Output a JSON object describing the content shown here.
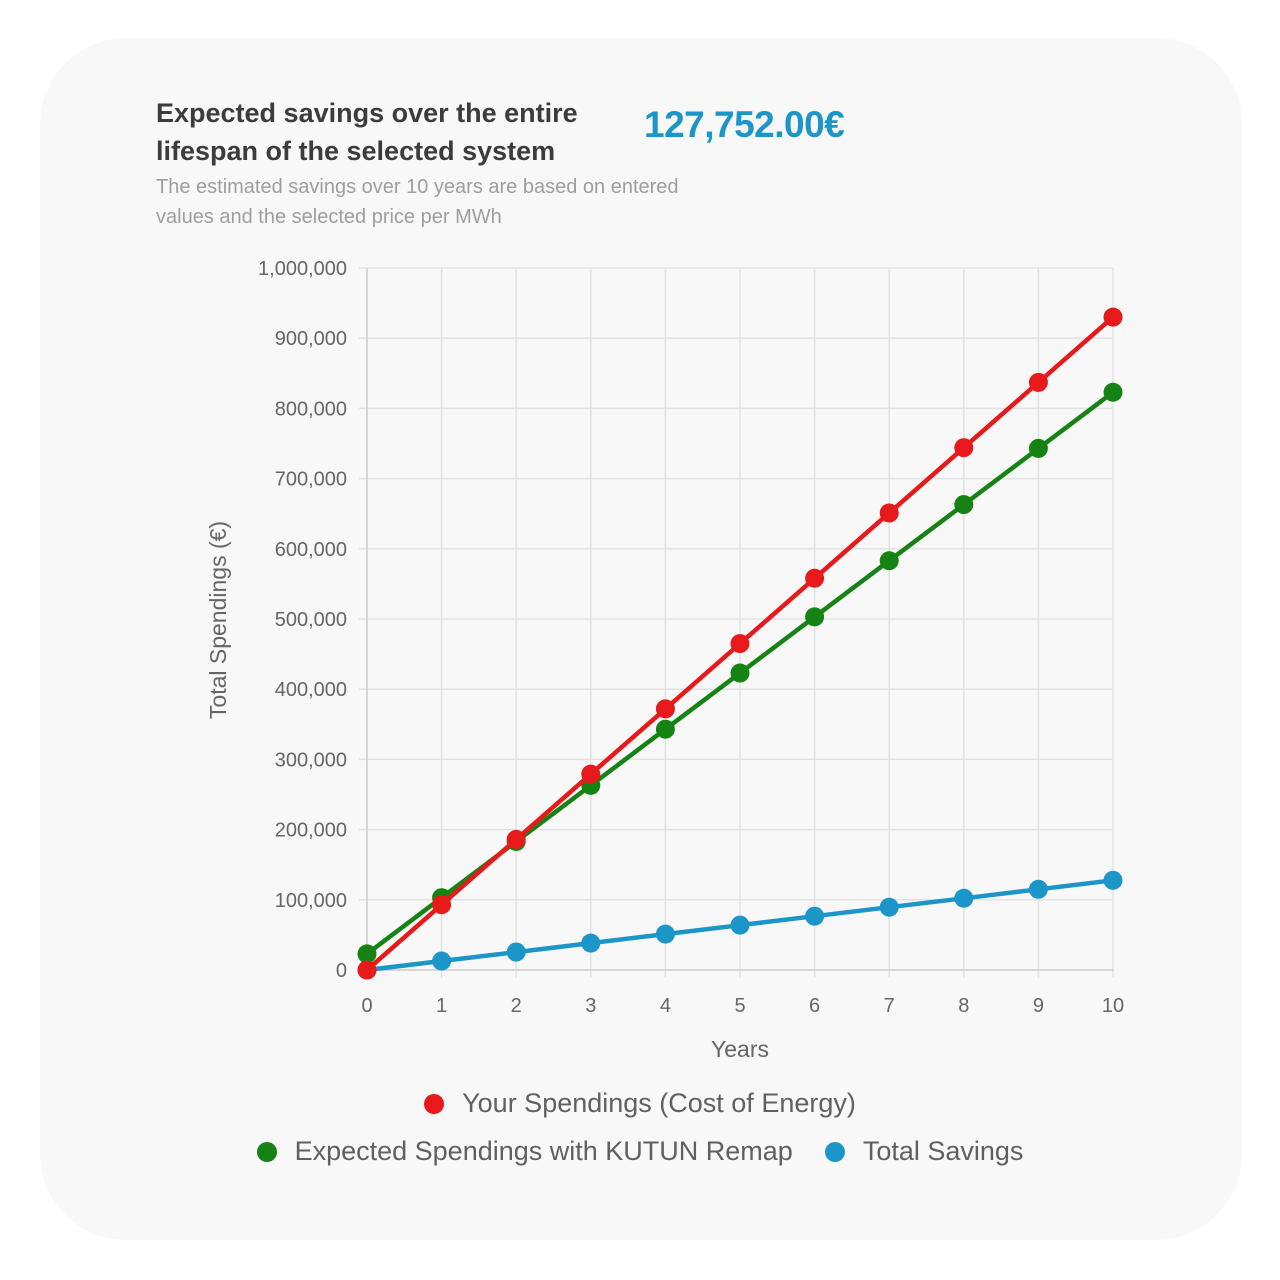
{
  "header": {
    "title": "Expected savings over the entire lifespan of the selected system",
    "amount": "127,752.00€",
    "subtitle": "The estimated savings over 10 years are based on entered values and the selected price per MWh"
  },
  "chart_data": {
    "type": "line",
    "xlabel": "Years",
    "ylabel": "Total Spendings (€)",
    "x": [
      0,
      1,
      2,
      3,
      4,
      5,
      6,
      7,
      8,
      9,
      10
    ],
    "xlim": [
      0,
      10
    ],
    "ylim": [
      0,
      1000000
    ],
    "y_ticks": [
      0,
      100000,
      200000,
      300000,
      400000,
      500000,
      600000,
      700000,
      800000,
      900000,
      1000000
    ],
    "y_tick_labels": [
      "0",
      "100,000",
      "200,000",
      "300,000",
      "400,000",
      "500,000",
      "600,000",
      "700,000",
      "800,000",
      "900,000",
      "1,000,000"
    ],
    "x_tick_labels": [
      "0",
      "1",
      "2",
      "3",
      "4",
      "5",
      "6",
      "7",
      "8",
      "9",
      "10"
    ],
    "grid": true,
    "legend_position": "bottom",
    "series": [
      {
        "name": "Your Spendings (Cost of Energy)",
        "color": "#e8191b",
        "values": [
          0,
          93000,
          186000,
          279000,
          372000,
          465000,
          558000,
          651000,
          744000,
          837000,
          930000
        ]
      },
      {
        "name": "Expected Spendings with KUTUN Remap",
        "color": "#158313",
        "values": [
          23000,
          103000,
          183000,
          263000,
          343000,
          423000,
          503000,
          583000,
          663000,
          743000,
          823000
        ]
      },
      {
        "name": "Total Savings",
        "color": "#1c95c9",
        "values": [
          0,
          12775,
          25550,
          38326,
          51101,
          63876,
          76651,
          89426,
          102202,
          114977,
          127752
        ]
      }
    ]
  }
}
